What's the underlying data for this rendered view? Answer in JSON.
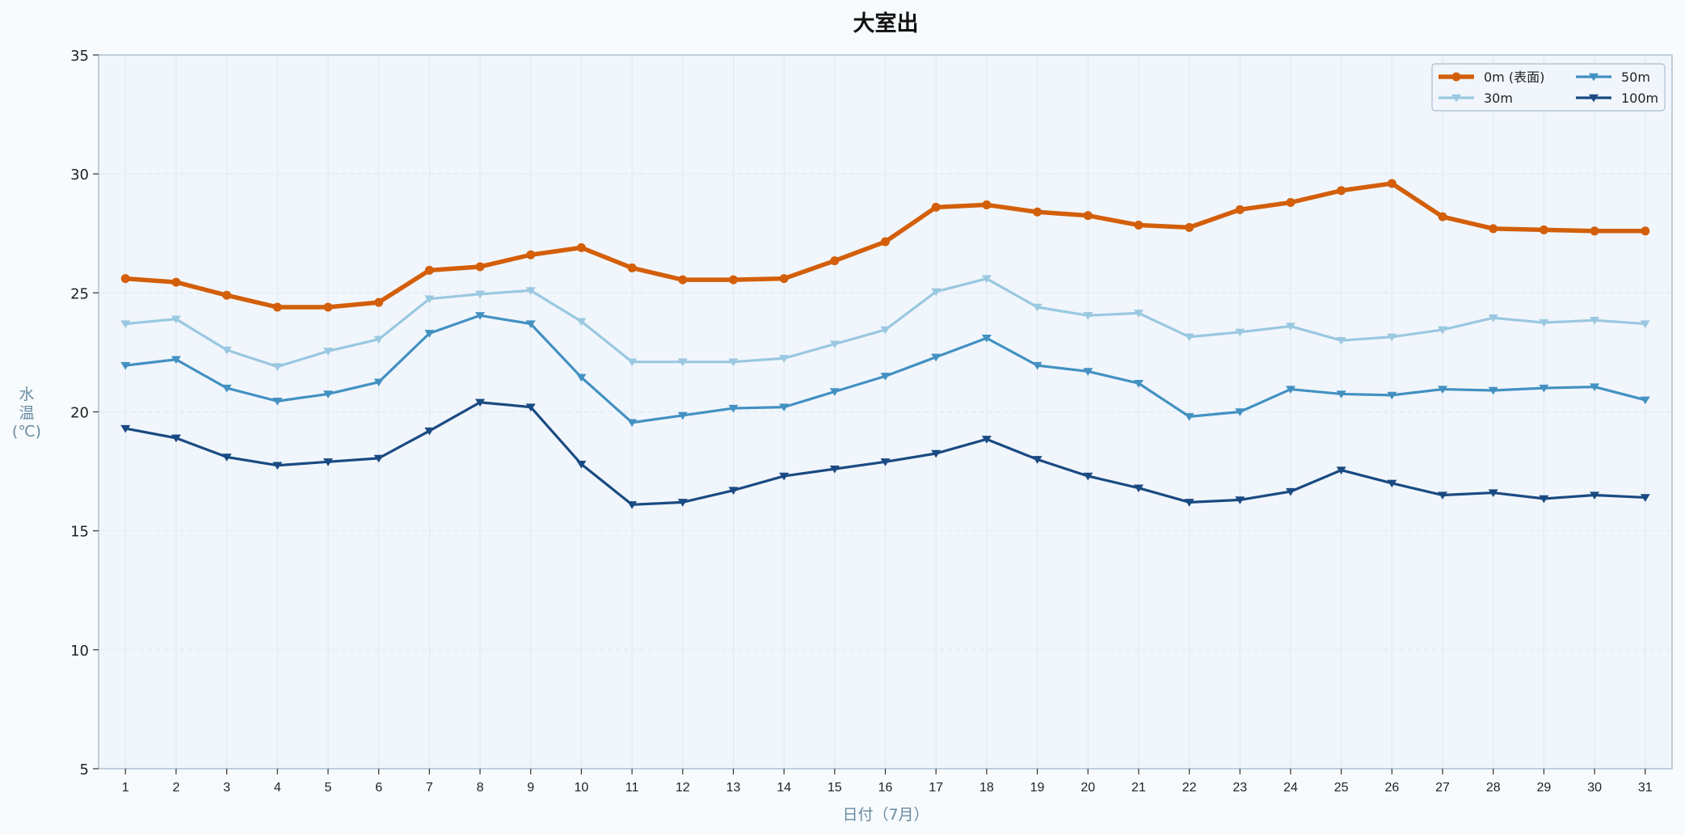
{
  "chart_data": {
    "type": "line",
    "title": "大室出",
    "xlabel": "日付（7月）",
    "ylabel": "水\n温\n(℃)",
    "xlim": [
      1,
      31
    ],
    "ylim": [
      5,
      35
    ],
    "yticks": [
      5,
      10,
      15,
      20,
      25,
      30,
      35
    ],
    "grid": true,
    "legend_position": "top-right",
    "x": [
      1,
      2,
      3,
      4,
      5,
      6,
      7,
      8,
      9,
      10,
      11,
      12,
      13,
      14,
      15,
      16,
      17,
      18,
      19,
      20,
      21,
      22,
      23,
      24,
      25,
      26,
      27,
      28,
      29,
      30,
      31
    ],
    "series": [
      {
        "name": "0m (表面)",
        "color": "#d35f0a",
        "marker": "circle",
        "values": [
          25.6,
          25.45,
          24.9,
          24.4,
          24.4,
          24.6,
          25.95,
          26.1,
          26.6,
          26.9,
          26.05,
          25.55,
          25.55,
          25.6,
          26.35,
          27.15,
          28.6,
          28.7,
          28.4,
          28.25,
          27.85,
          27.75,
          28.5,
          28.8,
          29.3,
          29.6,
          28.2,
          27.7,
          27.65,
          27.6,
          27.6
        ]
      },
      {
        "name": "30m",
        "color": "#9ac8e0",
        "marker": "triangle-down",
        "values": [
          23.7,
          23.9,
          22.6,
          21.9,
          22.55,
          23.05,
          24.75,
          24.95,
          25.1,
          23.8,
          22.1,
          22.1,
          22.1,
          22.25,
          22.85,
          23.45,
          25.05,
          25.6,
          24.4,
          24.05,
          24.15,
          23.15,
          23.35,
          23.6,
          23.0,
          23.15,
          23.45,
          23.95,
          23.75,
          23.85,
          23.7
        ]
      },
      {
        "name": "50m",
        "color": "#4391c2",
        "marker": "triangle-down",
        "values": [
          21.95,
          22.2,
          21.0,
          20.45,
          20.75,
          21.25,
          23.3,
          24.05,
          23.7,
          21.45,
          19.55,
          19.85,
          20.15,
          20.2,
          20.85,
          21.5,
          22.3,
          23.1,
          21.95,
          21.7,
          21.2,
          19.8,
          20.0,
          20.95,
          20.75,
          20.7,
          20.95,
          20.9,
          21.0,
          21.05,
          20.5
        ]
      },
      {
        "name": "100m",
        "color": "#1a4a82",
        "marker": "triangle-down",
        "values": [
          19.3,
          18.9,
          18.1,
          17.75,
          17.9,
          18.05,
          19.2,
          20.4,
          20.2,
          17.8,
          16.1,
          16.2,
          16.7,
          17.3,
          17.6,
          17.9,
          18.25,
          18.85,
          18.0,
          17.3,
          16.8,
          16.2,
          16.3,
          16.65,
          17.55,
          17.0,
          16.5,
          16.6,
          16.35,
          16.5,
          16.4
        ]
      }
    ],
    "colors": {
      "background": "#f7fbfe",
      "plot_background": "#f1f6fc",
      "axis_label": "#6a8aa0",
      "spine": "#aabdcc",
      "grid": "#dde8f0"
    }
  }
}
